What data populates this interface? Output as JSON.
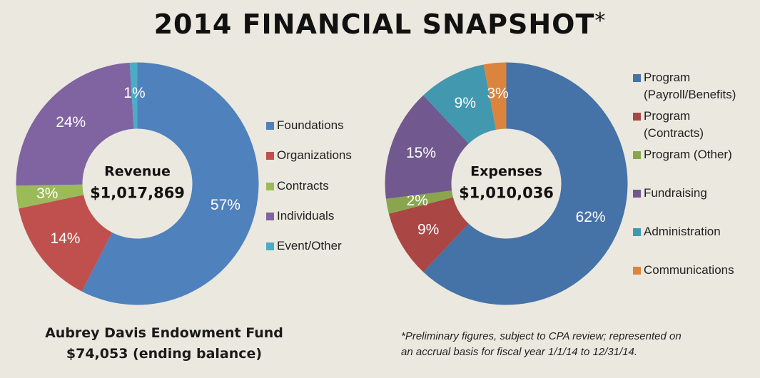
{
  "title": "2014 FINANCIAL SNAPSHOT",
  "title_mark": "*",
  "chart_data": [
    {
      "type": "pie",
      "donut": true,
      "center_title": "Revenue",
      "center_value": "$1,017,869",
      "legend_position": "right",
      "categories": [
        "Foundations",
        "Organizations",
        "Contracts",
        "Individuals",
        "Event/Other"
      ],
      "values": [
        57,
        14,
        3,
        24,
        1
      ],
      "value_labels": [
        "57%",
        "14%",
        "3%",
        "24%",
        "1%"
      ],
      "colors": [
        "#4f81bd",
        "#c0504d",
        "#9bbb59",
        "#8064a2",
        "#4bacc6"
      ]
    },
    {
      "type": "pie",
      "donut": true,
      "center_title": "Expenses",
      "center_value": "$1,010,036",
      "legend_position": "right",
      "categories": [
        "Program (Payroll/Benefits)",
        "Program (Contracts)",
        "Program (Other)",
        "Fundraising",
        "Administration",
        "Communications"
      ],
      "legend_lines": [
        [
          "Program",
          "(Payroll/Benefits)"
        ],
        [
          "Program",
          "(Contracts)"
        ],
        [
          "Program (Other)"
        ],
        [
          "Fundraising"
        ],
        [
          "Administration"
        ],
        [
          "Communications"
        ]
      ],
      "values": [
        62,
        9,
        2,
        15,
        9,
        3
      ],
      "value_labels": [
        "62%",
        "9%",
        "2%",
        "15%",
        "9%",
        "3%"
      ],
      "colors": [
        "#4572a7",
        "#aa4643",
        "#89a54e",
        "#71588f",
        "#4198af",
        "#db843d"
      ]
    }
  ],
  "endowment": {
    "name": "Aubrey Davis Endowment Fund",
    "balance": "$74,053 (ending balance)"
  },
  "footnote": {
    "line1": "*Preliminary figures, subject to CPA review; represented on",
    "line2": "an accrual basis for fiscal year 1/1/14 to 12/31/14."
  }
}
